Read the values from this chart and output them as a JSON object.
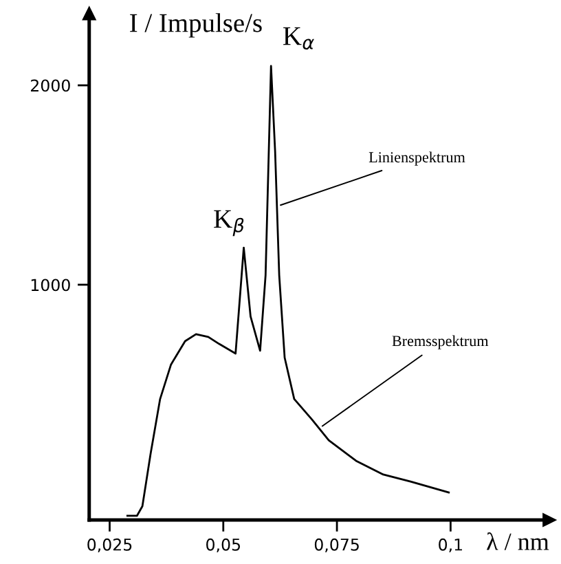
{
  "chart_data": {
    "type": "line",
    "xlabel": "λ / nm",
    "ylabel": "I / Impulse/s",
    "x": [
      0.0289,
      0.031,
      0.0322,
      0.034,
      0.0361,
      0.0385,
      0.0416,
      0.044,
      0.0467,
      0.0491,
      0.0527,
      0.0545,
      0.056,
      0.0581,
      0.0593,
      0.0605,
      0.0614,
      0.0623,
      0.0635,
      0.0656,
      0.0695,
      0.0732,
      0.0792,
      0.0852,
      0.0912,
      0.0996
    ],
    "series": [
      {
        "color": "#000000",
        "values": [
          -159,
          -159,
          -111,
          151,
          427,
          600,
          717,
          752,
          738,
          703,
          655,
          1186,
          841,
          669,
          1048,
          2097,
          1669,
          1048,
          634,
          427,
          324,
          220,
          117,
          48,
          13,
          -42
        ]
      }
    ],
    "xlim": [
      0.0205,
      0.1217
    ],
    "ylim": [
      -180,
      2360
    ],
    "xticks": [
      {
        "value": 0.025,
        "label": "0,025"
      },
      {
        "value": 0.05,
        "label": "0,05"
      },
      {
        "value": 0.075,
        "label": "0,075"
      },
      {
        "value": 0.1,
        "label": "0,1"
      }
    ],
    "yticks": [
      1000,
      2000
    ],
    "grid": false,
    "marker": "none",
    "line_style": "solid",
    "annotations": [
      {
        "text": "K$_{α}$",
        "x": 0.0605,
        "y": 2097
      },
      {
        "text": "K$_{β}$",
        "x": 0.0545,
        "y": 1186
      },
      {
        "text": "Linienspektrum",
        "x": 0.0618,
        "y": 1393
      },
      {
        "text": "Bremsspektrum",
        "x": 0.0711,
        "y": 280
      }
    ]
  }
}
